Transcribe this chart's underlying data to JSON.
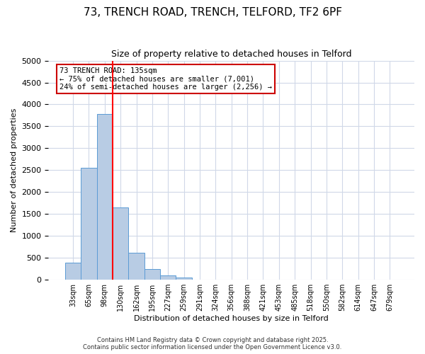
{
  "title": "73, TRENCH ROAD, TRENCH, TELFORD, TF2 6PF",
  "subtitle": "Size of property relative to detached houses in Telford",
  "xlabel": "Distribution of detached houses by size in Telford",
  "ylabel": "Number of detached properties",
  "bin_labels": [
    "33sqm",
    "65sqm",
    "98sqm",
    "130sqm",
    "162sqm",
    "195sqm",
    "227sqm",
    "259sqm",
    "291sqm",
    "324sqm",
    "356sqm",
    "388sqm",
    "421sqm",
    "453sqm",
    "485sqm",
    "518sqm",
    "550sqm",
    "582sqm",
    "614sqm",
    "647sqm",
    "679sqm"
  ],
  "bar_values": [
    390,
    2550,
    3780,
    1650,
    620,
    250,
    105,
    55,
    0,
    0,
    0,
    0,
    0,
    0,
    0,
    0,
    0,
    0,
    0,
    0,
    0
  ],
  "bar_color": "#b8cce4",
  "bar_edge_color": "#5b9bd5",
  "vline_x": 3,
  "vline_color": "#ff0000",
  "annotation_title": "73 TRENCH ROAD: 135sqm",
  "annotation_line1": "← 75% of detached houses are smaller (7,001)",
  "annotation_line2": "24% of semi-detached houses are larger (2,256) →",
  "annotation_box_edge_color": "#cc0000",
  "ylim": [
    0,
    5000
  ],
  "yticks": [
    0,
    500,
    1000,
    1500,
    2000,
    2500,
    3000,
    3500,
    4000,
    4500,
    5000
  ],
  "footer_line1": "Contains HM Land Registry data © Crown copyright and database right 2025.",
  "footer_line2": "Contains public sector information licensed under the Open Government Licence v3.0.",
  "background_color": "#ffffff",
  "grid_color": "#d0d8e8"
}
